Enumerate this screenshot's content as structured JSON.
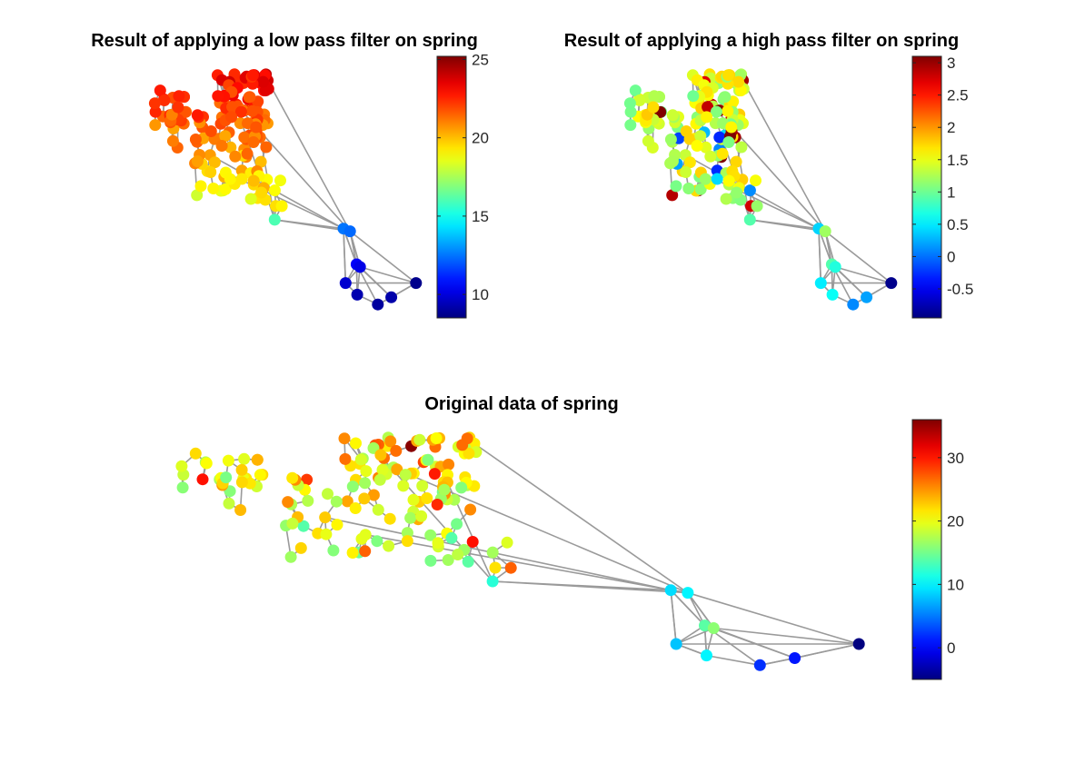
{
  "chart_data": [
    {
      "type": "scatter",
      "id": "lowpass",
      "title": "Result of applying a low pass filter on spring",
      "colormap": "jet",
      "clim": [
        8.5,
        25.2
      ],
      "colorbar_ticks": [
        {
          "value": 10,
          "label": "10"
        },
        {
          "value": 15,
          "label": "15"
        },
        {
          "value": 20,
          "label": "20"
        },
        {
          "value": 25,
          "label": "25"
        }
      ]
    },
    {
      "type": "scatter",
      "id": "highpass",
      "title": "Result of applying a high pass filter on spring",
      "colormap": "jet",
      "clim": [
        -0.95,
        3.1
      ],
      "colorbar_ticks": [
        {
          "value": -0.5,
          "label": "-0.5"
        },
        {
          "value": 0,
          "label": "0"
        },
        {
          "value": 0.5,
          "label": "0.5"
        },
        {
          "value": 1,
          "label": "1"
        },
        {
          "value": 1.5,
          "label": "1.5"
        },
        {
          "value": 2,
          "label": "2"
        },
        {
          "value": 2.5,
          "label": "2.5"
        },
        {
          "value": 3,
          "label": "3"
        }
      ]
    },
    {
      "type": "scatter",
      "id": "original",
      "title": "Original data of spring",
      "colormap": "jet",
      "clim": [
        -5,
        36
      ],
      "colorbar_ticks": [
        {
          "value": 0,
          "label": "0"
        },
        {
          "value": 10,
          "label": "10"
        },
        {
          "value": 20,
          "label": "20"
        },
        {
          "value": 30,
          "label": "30"
        }
      ]
    }
  ]
}
